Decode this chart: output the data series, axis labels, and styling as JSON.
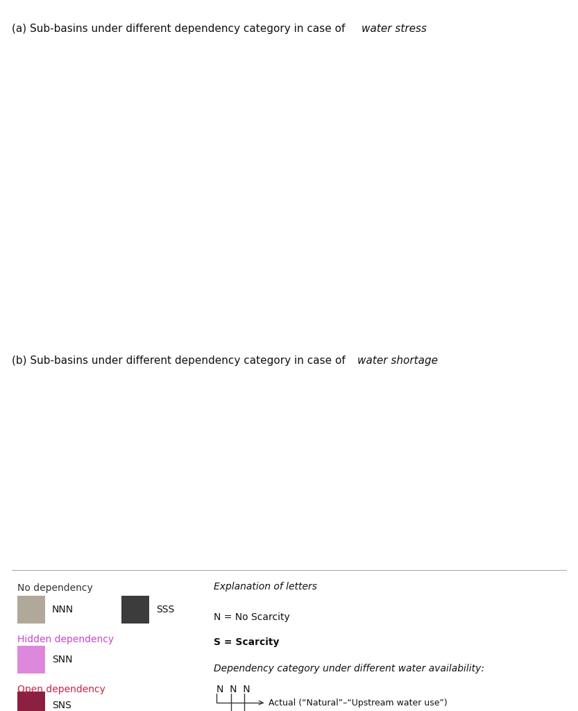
{
  "title_a_normal": "(a) Sub-basins under different dependency category in case of ",
  "title_a_italic": "water stress",
  "title_b_normal": "(b) Sub-basins under different dependency category in case of ",
  "title_b_italic": "water shortage",
  "background_color": "#FFFFFF",
  "ocean_color": "#FFFFFF",
  "land_color": "#EDE8D8",
  "color_NNN": "#B0A898",
  "color_SSS": "#3C3C3C",
  "color_SNN": "#DD88DD",
  "color_SNS": "#8B2040",
  "legend_hidden_dep_color": "#CC44CC",
  "legend_open_dep_color": "#CC2244",
  "title_fontsize": 11,
  "legend_fontsize": 10,
  "fig_width": 8.33,
  "fig_height": 10.24
}
